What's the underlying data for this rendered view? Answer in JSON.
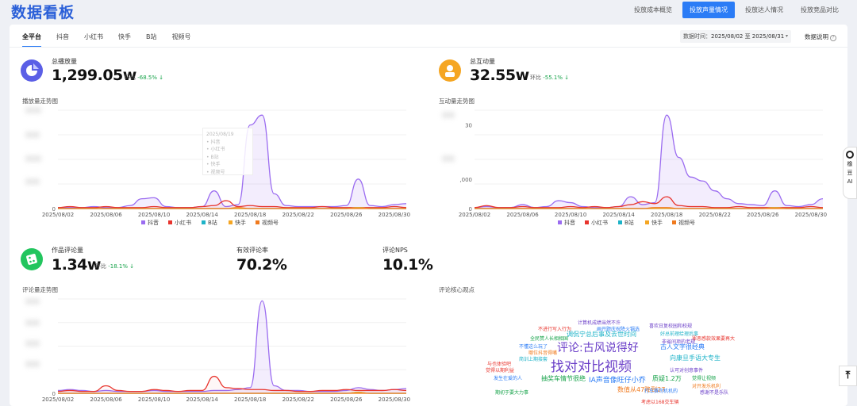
{
  "title": "数据看板",
  "top_tabs": [
    "投放成本概览",
    "投放声量情况",
    "投放达人情况",
    "投放竞品对比"
  ],
  "top_tab_active": 1,
  "platform_tabs": [
    "全平台",
    "抖音",
    "小红书",
    "快手",
    "B站",
    "视频号"
  ],
  "date": {
    "label": "数据时间：",
    "range": "2025/08/02 至 2025/08/31"
  },
  "data_note": "数据说明",
  "metrics": {
    "plays": {
      "label": "总播放量",
      "value": "1,299.05w",
      "change_label": "环比",
      "change": "-68.5%",
      "arrow": "↓"
    },
    "interactions": {
      "label": "总互动量",
      "value": "32.55w",
      "change_label": "环比",
      "change": "-55.1%",
      "arrow": "↓"
    },
    "comments": {
      "label": "作品评论量",
      "value": "1.34w",
      "change_label": "环比",
      "change": "-18.1%",
      "arrow": "↓"
    },
    "valid_rate": {
      "label": "有效评论率",
      "value": "70.2%"
    },
    "nps": {
      "label": "评论NPS",
      "value": "10.1%"
    }
  },
  "chart_titles": {
    "plays": "播放量走势图",
    "interactions": "互动量走势图",
    "comments": "评论量走势图",
    "wordcloud": "评论核心观点"
  },
  "tooltip": {
    "date": "2025/08/19",
    "items": [
      "抖音",
      "小红书",
      "B站",
      "快手",
      "视频号"
    ]
  },
  "legend": [
    "抖音",
    "小红书",
    "B站",
    "快手",
    "视频号"
  ],
  "colors": {
    "抖音": "#9b6cf0",
    "小红书": "#e8342d",
    "B站": "#1eb3c8",
    "快手": "#f5a623",
    "视频号": "#f07a1e",
    "accent": "#2b7cf6",
    "change": "#17a34a"
  },
  "chart_data": [
    {
      "type": "line",
      "title": "播放量走势图",
      "x": [
        "2025/08/02",
        "2025/08/03",
        "2025/08/04",
        "2025/08/05",
        "2025/08/06",
        "2025/08/07",
        "2025/08/08",
        "2025/08/09",
        "2025/08/10",
        "2025/08/11",
        "2025/08/12",
        "2025/08/13",
        "2025/08/14",
        "2025/08/15",
        "2025/08/16",
        "2025/08/17",
        "2025/08/18",
        "2025/08/19",
        "2025/08/20",
        "2025/08/21",
        "2025/08/22",
        "2025/08/23",
        "2025/08/24",
        "2025/08/25",
        "2025/08/26",
        "2025/08/27",
        "2025/08/28",
        "2025/08/29",
        "2025/08/30",
        "2025/08/31"
      ],
      "xticks": [
        "2025/08/02",
        "2025/08/06",
        "2025/08/10",
        "2025/08/14",
        "2025/08/18",
        "2025/08/22",
        "2025/08/26",
        "2025/08/30"
      ],
      "yticks": [
        "0"
      ],
      "series": [
        {
          "name": "抖音",
          "values": [
            1,
            1,
            1,
            2,
            1,
            1,
            3,
            10,
            11,
            2,
            1,
            1,
            2,
            18,
            2,
            4,
            85,
            95,
            15,
            3,
            2,
            2,
            2,
            2,
            3,
            30,
            3,
            2,
            4,
            5
          ]
        },
        {
          "name": "小红书",
          "values": [
            1,
            2,
            1,
            1,
            2,
            1,
            1,
            1,
            2,
            1,
            1,
            1,
            2,
            3,
            8,
            2,
            3,
            2,
            2,
            1,
            1,
            1,
            2,
            1,
            1,
            1,
            1,
            1,
            2,
            1
          ]
        },
        {
          "name": "B站",
          "values": [
            0,
            0,
            0,
            0,
            0,
            0,
            0,
            0,
            0,
            0,
            0,
            0,
            0,
            0,
            0,
            0,
            0,
            0,
            0,
            0,
            0,
            0,
            0,
            0,
            0,
            1,
            0,
            0,
            0,
            0
          ]
        },
        {
          "name": "快手",
          "values": [
            0,
            0,
            0,
            0,
            0,
            0,
            0,
            0,
            0,
            0,
            0,
            0,
            0,
            0,
            0,
            0,
            0,
            0,
            0,
            0,
            0,
            0,
            0,
            0,
            0,
            1,
            0,
            0,
            0,
            0
          ]
        },
        {
          "name": "视频号",
          "values": [
            0,
            0,
            0,
            0,
            0,
            0,
            0,
            0,
            0,
            0,
            0,
            0,
            0,
            0,
            0,
            1,
            0,
            0,
            0,
            0,
            0,
            0,
            0,
            0,
            0,
            0,
            0,
            0,
            0,
            0
          ]
        }
      ]
    },
    {
      "type": "line",
      "title": "互动量走势图",
      "x": [
        "2025/08/02",
        "2025/08/03",
        "2025/08/04",
        "2025/08/05",
        "2025/08/06",
        "2025/08/07",
        "2025/08/08",
        "2025/08/09",
        "2025/08/10",
        "2025/08/11",
        "2025/08/12",
        "2025/08/13",
        "2025/08/14",
        "2025/08/15",
        "2025/08/16",
        "2025/08/17",
        "2025/08/18",
        "2025/08/19",
        "2025/08/20",
        "2025/08/21",
        "2025/08/22",
        "2025/08/23",
        "2025/08/24",
        "2025/08/25",
        "2025/08/26",
        "2025/08/27",
        "2025/08/28",
        "2025/08/29",
        "2025/08/30",
        "2025/08/31"
      ],
      "xticks": [
        "2025/08/02",
        "2025/08/06",
        "2025/08/10",
        "2025/08/14",
        "2025/08/18",
        "2025/08/22",
        "2025/08/26",
        "2025/08/30"
      ],
      "yticks": [
        "0",
        ",000",
        "30"
      ],
      "series": [
        {
          "name": "抖音",
          "values": [
            1,
            2,
            1,
            1,
            4,
            1,
            2,
            8,
            6,
            2,
            1,
            1,
            2,
            12,
            4,
            6,
            95,
            52,
            32,
            28,
            18,
            10,
            5,
            4,
            3,
            18,
            3,
            2,
            4,
            10
          ]
        },
        {
          "name": "小红书",
          "values": [
            1,
            3,
            1,
            1,
            2,
            1,
            1,
            1,
            2,
            1,
            2,
            1,
            2,
            4,
            7,
            5,
            12,
            3,
            2,
            2,
            1,
            1,
            2,
            1,
            1,
            1,
            1,
            1,
            2,
            1
          ]
        },
        {
          "name": "B站",
          "values": [
            0,
            0,
            0,
            0,
            0,
            0,
            0,
            0,
            0,
            0,
            0,
            0,
            0,
            0,
            0,
            0,
            0,
            0,
            0,
            0,
            0,
            0,
            0,
            0,
            0,
            1,
            0,
            0,
            0,
            0
          ]
        },
        {
          "name": "快手",
          "values": [
            0,
            0,
            0,
            0,
            0,
            0,
            0,
            0,
            0,
            0,
            0,
            0,
            0,
            0,
            0,
            0,
            0,
            0,
            0,
            0,
            0,
            0,
            0,
            0,
            0,
            1,
            0,
            0,
            0,
            0
          ]
        },
        {
          "name": "视频号",
          "values": [
            0,
            0,
            0,
            0,
            0,
            0,
            0,
            0,
            0,
            0,
            0,
            0,
            0,
            0,
            0,
            1,
            1,
            0,
            0,
            0,
            0,
            0,
            0,
            0,
            0,
            0,
            0,
            0,
            0,
            0
          ]
        }
      ]
    },
    {
      "type": "line",
      "title": "评论量走势图",
      "x": [
        "2025/08/02",
        "2025/08/03",
        "2025/08/04",
        "2025/08/05",
        "2025/08/06",
        "2025/08/07",
        "2025/08/08",
        "2025/08/09",
        "2025/08/10",
        "2025/08/11",
        "2025/08/12",
        "2025/08/13",
        "2025/08/14",
        "2025/08/15",
        "2025/08/16",
        "2025/08/17",
        "2025/08/18",
        "2025/08/19",
        "2025/08/20",
        "2025/08/21",
        "2025/08/22",
        "2025/08/23",
        "2025/08/24",
        "2025/08/25",
        "2025/08/26",
        "2025/08/27",
        "2025/08/28",
        "2025/08/29",
        "2025/08/30",
        "2025/08/31"
      ],
      "xticks": [
        "2025/08/02",
        "2025/08/06",
        "2025/08/10",
        "2025/08/14",
        "2025/08/18",
        "2025/08/22",
        "2025/08/26",
        "2025/08/30"
      ],
      "yticks": [
        "0"
      ],
      "series": [
        {
          "name": "抖音",
          "values": [
            3,
            4,
            3,
            2,
            3,
            2,
            2,
            2,
            3,
            2,
            2,
            2,
            2,
            3,
            3,
            4,
            6,
            98,
            8,
            3,
            3,
            2,
            2,
            2,
            3,
            6,
            4,
            3,
            4,
            5
          ]
        },
        {
          "name": "小红书",
          "values": [
            2,
            3,
            2,
            2,
            8,
            3,
            2,
            2,
            4,
            3,
            2,
            3,
            3,
            18,
            6,
            5,
            4,
            4,
            3,
            3,
            2,
            2,
            3,
            3,
            4,
            3,
            3,
            3,
            4,
            3
          ]
        },
        {
          "name": "B站",
          "values": [
            0,
            0,
            0,
            0,
            0,
            0,
            0,
            0,
            0,
            0,
            0,
            0,
            0,
            0,
            0,
            0,
            0,
            0,
            0,
            0,
            0,
            0,
            0,
            0,
            0,
            1,
            0,
            0,
            0,
            0
          ]
        },
        {
          "name": "快手",
          "values": [
            0,
            0,
            0,
            0,
            0,
            0,
            0,
            0,
            0,
            0,
            0,
            0,
            0,
            0,
            0,
            0,
            0,
            0,
            0,
            0,
            0,
            0,
            0,
            0,
            0,
            1,
            0,
            0,
            0,
            0
          ]
        },
        {
          "name": "视频号",
          "values": [
            0,
            0,
            0,
            0,
            0,
            0,
            0,
            0,
            0,
            0,
            0,
            0,
            0,
            0,
            0,
            0,
            0,
            0,
            0,
            0,
            0,
            0,
            0,
            0,
            0,
            0,
            0,
            0,
            0,
            0
          ]
        }
      ]
    }
  ],
  "wordcloud": [
    {
      "t": "评论:古风说得好",
      "c": "#6b3fc8"
    },
    {
      "t": "找对对比视频",
      "c": "#6b3fc8"
    },
    {
      "t": "调侃宁总后事及去世时间",
      "c": "#1eb3c8"
    },
    {
      "t": "抽奖车情节很绝",
      "c": "#17a34a"
    },
    {
      "t": "IA声音像旺仔小乔",
      "c": "#2b7cf6"
    },
    {
      "t": "质疑1.2万",
      "c": "#17a34a"
    },
    {
      "t": "数值从47降到27",
      "c": "#f07a1e"
    },
    {
      "t": "古人文字很经典",
      "c": "#2b7cf6"
    },
    {
      "t": "向康旦手语大专生",
      "c": "#1eb3c8"
    },
    {
      "t": "计算机成绩当然不许",
      "c": "#6b3fc8"
    },
    {
      "t": "不进行写入行为",
      "c": "#e8342d"
    },
    {
      "t": "画开题庆祝降火锅选",
      "c": "#2b7cf6"
    },
    {
      "t": "喜欢日复校园和校规",
      "c": "#6b3fc8"
    },
    {
      "t": "好总前理给理后事",
      "c": "#1eb3c8"
    },
    {
      "t": "罪恶感款效果要再大",
      "c": "#e8342d"
    },
    {
      "t": "全民赞人长相相国",
      "c": "#17a34a"
    },
    {
      "t": "非省间项的老规",
      "c": "#6b3fc8"
    },
    {
      "t": "不懂这么玩了",
      "c": "#2b7cf6"
    },
    {
      "t": "哪位抖音得嘴",
      "c": "#f07a1e"
    },
    {
      "t": "简训上期接套",
      "c": "#1eb3c8"
    },
    {
      "t": "觉得以期利益",
      "c": "#e8342d"
    },
    {
      "t": "发生在爱的人",
      "c": "#2b7cf6"
    },
    {
      "t": "认可对创意事件",
      "c": "#6b3fc8"
    },
    {
      "t": "觉得让视频",
      "c": "#17a34a"
    },
    {
      "t": "与也体验吧",
      "c": "#e8342d"
    },
    {
      "t": "打车赛司机机的",
      "c": "#2b7cf6"
    },
    {
      "t": "对开发乐机利",
      "c": "#f07a1e"
    },
    {
      "t": "感谢不是乐队",
      "c": "#6b3fc8"
    },
    {
      "t": "期初于要大力事",
      "c": "#17a34a"
    },
    {
      "t": "考虑以168交车辆",
      "c": "#e8342d"
    }
  ]
}
